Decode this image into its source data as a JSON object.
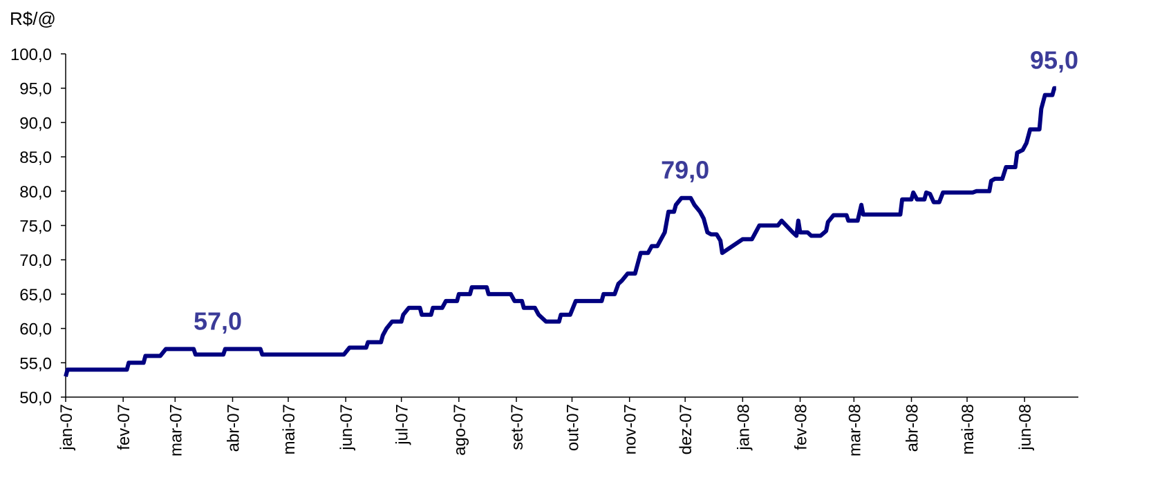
{
  "chart_data": {
    "type": "line",
    "y_axis_label": "R$/@",
    "x": [
      0,
      1,
      33,
      34,
      42,
      43,
      51,
      54,
      69,
      70,
      85,
      86,
      105,
      106,
      150,
      153,
      162,
      163,
      170,
      171,
      173,
      176,
      181,
      182,
      185,
      191,
      192,
      197,
      198,
      203,
      205,
      211,
      212,
      218,
      219,
      227,
      228,
      240,
      242,
      246,
      247,
      253,
      255,
      259,
      266,
      267,
      272,
      275,
      289,
      290,
      296,
      298,
      300,
      303,
      307,
      310,
      314,
      316,
      319,
      323,
      325,
      328,
      329,
      332,
      337,
      339,
      342,
      344,
      346,
      348,
      351,
      353,
      354,
      365,
      370,
      372,
      374,
      384,
      386,
      392,
      394,
      395,
      396,
      400,
      402,
      407,
      410,
      411,
      414,
      421,
      422,
      427,
      429,
      430,
      450,
      451,
      456,
      457,
      459,
      463,
      464,
      466,
      468,
      471,
      473,
      489,
      491,
      498,
      499,
      501,
      505,
      507,
      512,
      513,
      516,
      518,
      520,
      525,
      526,
      528,
      532,
      533,
      534
    ],
    "series": [
      {
        "color": "#000080",
        "values": [
          53,
          54,
          54,
          55,
          55,
          56,
          56,
          57,
          57,
          56.2,
          56.2,
          57,
          57,
          56.2,
          56.2,
          57.2,
          57.2,
          58,
          58,
          59,
          60,
          61,
          61,
          62,
          63,
          63,
          62,
          62,
          63,
          63,
          64,
          64,
          65,
          65,
          66,
          66,
          65,
          65,
          64,
          64,
          63,
          63,
          62,
          61,
          61,
          62,
          62,
          64,
          64,
          65,
          65,
          66.5,
          67,
          68,
          68,
          71,
          71,
          72,
          72,
          74,
          77,
          77,
          78,
          79,
          79,
          78,
          77,
          76,
          74,
          73.7,
          73.7,
          72.8,
          71,
          73,
          73,
          74,
          75,
          75,
          75.7,
          74,
          73.5,
          75.7,
          74,
          74,
          73.5,
          73.5,
          74.2,
          75.5,
          76.5,
          76.5,
          75.7,
          75.7,
          78,
          76.6,
          76.6,
          78.8,
          78.8,
          79.8,
          78.8,
          78.8,
          79.8,
          79.6,
          78.4,
          78.4,
          79.8,
          79.8,
          80,
          80,
          81.5,
          81.8,
          81.8,
          83.5,
          83.5,
          85.6,
          86,
          87,
          89,
          89,
          92,
          94,
          94,
          95,
          95
        ]
      }
    ],
    "xlim": [
      0,
      546
    ],
    "xticks": [
      {
        "value": 0,
        "label": "jan-07"
      },
      {
        "value": 31,
        "label": "fev-07"
      },
      {
        "value": 59,
        "label": "mar-07"
      },
      {
        "value": 90,
        "label": "abr-07"
      },
      {
        "value": 120,
        "label": "mai-07"
      },
      {
        "value": 151,
        "label": "jun-07"
      },
      {
        "value": 181,
        "label": "jul-07"
      },
      {
        "value": 212,
        "label": "ago-07"
      },
      {
        "value": 243,
        "label": "set-07"
      },
      {
        "value": 273,
        "label": "out-07"
      },
      {
        "value": 304,
        "label": "nov-07"
      },
      {
        "value": 334,
        "label": "dez-07"
      },
      {
        "value": 365,
        "label": "jan-08"
      },
      {
        "value": 396,
        "label": "fev-08"
      },
      {
        "value": 425,
        "label": "mar-08"
      },
      {
        "value": 456,
        "label": "abr-08"
      },
      {
        "value": 486,
        "label": "mai-08"
      },
      {
        "value": 517,
        "label": "jun-08"
      }
    ],
    "ylim": [
      50,
      100
    ],
    "yticks": [
      {
        "value": 50,
        "label": "50,0"
      },
      {
        "value": 55,
        "label": "55,0"
      },
      {
        "value": 60,
        "label": "60,0"
      },
      {
        "value": 65,
        "label": "65,0"
      },
      {
        "value": 70,
        "label": "70,0"
      },
      {
        "value": 75,
        "label": "75,0"
      },
      {
        "value": 80,
        "label": "80,0"
      },
      {
        "value": 85,
        "label": "85,0"
      },
      {
        "value": 90,
        "label": "90,0"
      },
      {
        "value": 95,
        "label": "95,0"
      },
      {
        "value": 100,
        "label": "100,0"
      }
    ],
    "annotations": [
      {
        "x": 82,
        "value": 57,
        "label": "57,0"
      },
      {
        "x": 334,
        "value": 79,
        "label": "79,0"
      },
      {
        "x": 534,
        "value": 95,
        "label": "95,0"
      }
    ],
    "grid": false
  }
}
